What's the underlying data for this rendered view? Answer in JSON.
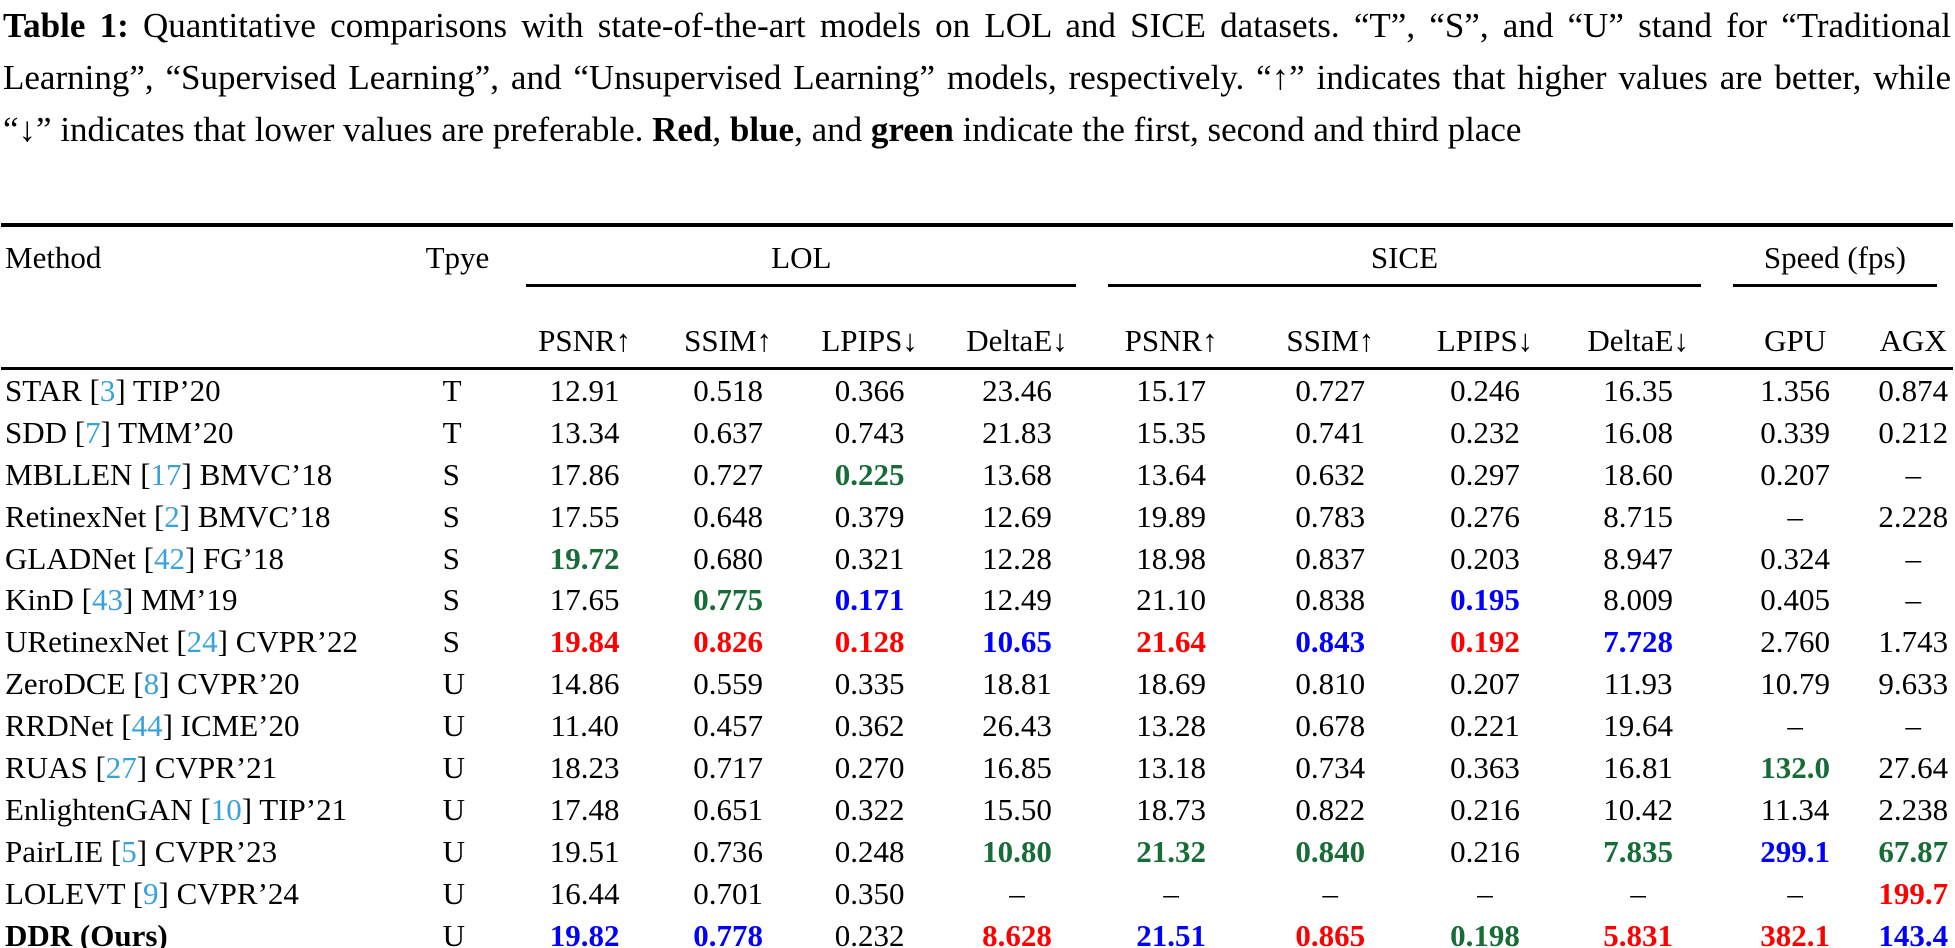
{
  "caption": {
    "segments": [
      {
        "t": "Table 1:",
        "b": true
      },
      {
        "t": " Quantitative comparisons with state-of-the-art models on LOL and SICE datasets. “T”, “S”, and “U” stand for “Traditional Learning”, “Supervised Learning”, and “Unsupervised Learning” models, respectively. “↑” indicates that higher values are better, while “↓” indicates that lower values are preferable. ",
        "b": false
      },
      {
        "t": "Red",
        "b": true
      },
      {
        "t": ", ",
        "b": false
      },
      {
        "t": "blue",
        "b": true
      },
      {
        "t": ", and ",
        "b": false
      },
      {
        "t": "green",
        "b": true
      },
      {
        "t": " indicate the first, second and third place",
        "b": false
      }
    ]
  },
  "colors": {
    "first": "#ff0000",
    "second": "#0000ff",
    "third": "#186c38",
    "cite": "#38a2dc"
  },
  "table": {
    "head": {
      "method": "Method",
      "type": "Tpye",
      "groups": [
        "LOL",
        "SICE",
        "Speed (fps)"
      ],
      "sub": [
        "PSNR↑",
        "SSIM↑",
        "LPIPS↓",
        "DeltaE↓",
        "PSNR↑",
        "SSIM↑",
        "LPIPS↓",
        "DeltaE↓",
        "GPU",
        "AGX"
      ]
    },
    "rows": [
      {
        "name": "STAR",
        "cite": "3",
        "venue": "TIP’20",
        "type": "T",
        "bold": false,
        "cells": [
          [
            "12.91",
            "k"
          ],
          [
            "0.518",
            "k"
          ],
          [
            "0.366",
            "k"
          ],
          [
            "23.46",
            "k"
          ],
          [
            "15.17",
            "k"
          ],
          [
            "0.727",
            "k"
          ],
          [
            "0.246",
            "k"
          ],
          [
            "16.35",
            "k"
          ],
          [
            "1.356",
            "k"
          ],
          [
            "0.874",
            "k"
          ]
        ]
      },
      {
        "name": "SDD",
        "cite": "7",
        "venue": "TMM’20",
        "type": "T",
        "bold": false,
        "cells": [
          [
            "13.34",
            "k"
          ],
          [
            "0.637",
            "k"
          ],
          [
            "0.743",
            "k"
          ],
          [
            "21.83",
            "k"
          ],
          [
            "15.35",
            "k"
          ],
          [
            "0.741",
            "k"
          ],
          [
            "0.232",
            "k"
          ],
          [
            "16.08",
            "k"
          ],
          [
            "0.339",
            "k"
          ],
          [
            "0.212",
            "k"
          ]
        ]
      },
      {
        "name": "MBLLEN",
        "cite": "17",
        "venue": "BMVC’18",
        "type": "S",
        "bold": false,
        "cells": [
          [
            "17.86",
            "k"
          ],
          [
            "0.727",
            "k"
          ],
          [
            "0.225",
            "g"
          ],
          [
            "13.68",
            "k"
          ],
          [
            "13.64",
            "k"
          ],
          [
            "0.632",
            "k"
          ],
          [
            "0.297",
            "k"
          ],
          [
            "18.60",
            "k"
          ],
          [
            "0.207",
            "k"
          ],
          [
            "–",
            "k"
          ]
        ]
      },
      {
        "name": "RetinexNet",
        "cite": "2",
        "venue": "BMVC’18",
        "type": "S",
        "bold": false,
        "cells": [
          [
            "17.55",
            "k"
          ],
          [
            "0.648",
            "k"
          ],
          [
            "0.379",
            "k"
          ],
          [
            "12.69",
            "k"
          ],
          [
            "19.89",
            "k"
          ],
          [
            "0.783",
            "k"
          ],
          [
            "0.276",
            "k"
          ],
          [
            "8.715",
            "k"
          ],
          [
            "–",
            "k"
          ],
          [
            "2.228",
            "k"
          ]
        ]
      },
      {
        "name": "GLADNet",
        "cite": "42",
        "venue": "FG’18",
        "type": "S",
        "bold": false,
        "cells": [
          [
            "19.72",
            "g"
          ],
          [
            "0.680",
            "k"
          ],
          [
            "0.321",
            "k"
          ],
          [
            "12.28",
            "k"
          ],
          [
            "18.98",
            "k"
          ],
          [
            "0.837",
            "k"
          ],
          [
            "0.203",
            "k"
          ],
          [
            "8.947",
            "k"
          ],
          [
            "0.324",
            "k"
          ],
          [
            "–",
            "k"
          ]
        ]
      },
      {
        "name": "KinD",
        "cite": "43",
        "venue": "MM’19",
        "type": "S",
        "bold": false,
        "cells": [
          [
            "17.65",
            "k"
          ],
          [
            "0.775",
            "g"
          ],
          [
            "0.171",
            "b"
          ],
          [
            "12.49",
            "k"
          ],
          [
            "21.10",
            "k"
          ],
          [
            "0.838",
            "k"
          ],
          [
            "0.195",
            "b"
          ],
          [
            "8.009",
            "k"
          ],
          [
            "0.405",
            "k"
          ],
          [
            "–",
            "k"
          ]
        ]
      },
      {
        "name": "URetinexNet",
        "cite": "24",
        "venue": "CVPR’22",
        "type": "S",
        "bold": false,
        "cells": [
          [
            "19.84",
            "r"
          ],
          [
            "0.826",
            "r"
          ],
          [
            "0.128",
            "r"
          ],
          [
            "10.65",
            "b"
          ],
          [
            "21.64",
            "r"
          ],
          [
            "0.843",
            "b"
          ],
          [
            "0.192",
            "r"
          ],
          [
            "7.728",
            "b"
          ],
          [
            "2.760",
            "k"
          ],
          [
            "1.743",
            "k"
          ]
        ]
      },
      {
        "name": "ZeroDCE",
        "cite": "8",
        "venue": "CVPR’20",
        "type": "U",
        "bold": false,
        "cells": [
          [
            "14.86",
            "k"
          ],
          [
            "0.559",
            "k"
          ],
          [
            "0.335",
            "k"
          ],
          [
            "18.81",
            "k"
          ],
          [
            "18.69",
            "k"
          ],
          [
            "0.810",
            "k"
          ],
          [
            "0.207",
            "k"
          ],
          [
            "11.93",
            "k"
          ],
          [
            "10.79",
            "k"
          ],
          [
            "9.633",
            "k"
          ]
        ]
      },
      {
        "name": "RRDNet",
        "cite": "44",
        "venue": "ICME’20",
        "type": "U",
        "bold": false,
        "cells": [
          [
            "11.40",
            "k"
          ],
          [
            "0.457",
            "k"
          ],
          [
            "0.362",
            "k"
          ],
          [
            "26.43",
            "k"
          ],
          [
            "13.28",
            "k"
          ],
          [
            "0.678",
            "k"
          ],
          [
            "0.221",
            "k"
          ],
          [
            "19.64",
            "k"
          ],
          [
            "–",
            "k"
          ],
          [
            "–",
            "k"
          ]
        ]
      },
      {
        "name": "RUAS",
        "cite": "27",
        "venue": "CVPR’21",
        "type": "U",
        "bold": false,
        "cells": [
          [
            "18.23",
            "k"
          ],
          [
            "0.717",
            "k"
          ],
          [
            "0.270",
            "k"
          ],
          [
            "16.85",
            "k"
          ],
          [
            "13.18",
            "k"
          ],
          [
            "0.734",
            "k"
          ],
          [
            "0.363",
            "k"
          ],
          [
            "16.81",
            "k"
          ],
          [
            "132.0",
            "g"
          ],
          [
            "27.64",
            "k"
          ]
        ]
      },
      {
        "name": "EnlightenGAN",
        "cite": "10",
        "venue": "TIP’21",
        "type": "U",
        "bold": false,
        "cells": [
          [
            "17.48",
            "k"
          ],
          [
            "0.651",
            "k"
          ],
          [
            "0.322",
            "k"
          ],
          [
            "15.50",
            "k"
          ],
          [
            "18.73",
            "k"
          ],
          [
            "0.822",
            "k"
          ],
          [
            "0.216",
            "k"
          ],
          [
            "10.42",
            "k"
          ],
          [
            "11.34",
            "k"
          ],
          [
            "2.238",
            "k"
          ]
        ]
      },
      {
        "name": "PairLIE",
        "cite": "5",
        "venue": "CVPR’23",
        "type": "U",
        "bold": false,
        "cells": [
          [
            "19.51",
            "k"
          ],
          [
            "0.736",
            "k"
          ],
          [
            "0.248",
            "k"
          ],
          [
            "10.80",
            "g"
          ],
          [
            "21.32",
            "g"
          ],
          [
            "0.840",
            "g"
          ],
          [
            "0.216",
            "k"
          ],
          [
            "7.835",
            "g"
          ],
          [
            "299.1",
            "b"
          ],
          [
            "67.87",
            "g"
          ]
        ]
      },
      {
        "name": "LOLEVT",
        "cite": "9",
        "venue": "CVPR’24",
        "type": "U",
        "bold": false,
        "cells": [
          [
            "16.44",
            "k"
          ],
          [
            "0.701",
            "k"
          ],
          [
            "0.350",
            "k"
          ],
          [
            "–",
            "k"
          ],
          [
            "–",
            "k"
          ],
          [
            "–",
            "k"
          ],
          [
            "–",
            "k"
          ],
          [
            "–",
            "k"
          ],
          [
            "–",
            "k"
          ],
          [
            "199.7",
            "r"
          ]
        ]
      },
      {
        "name": "DDR (Ours)",
        "cite": null,
        "venue": "",
        "type": "U",
        "bold": true,
        "cells": [
          [
            "19.82",
            "b"
          ],
          [
            "0.778",
            "b"
          ],
          [
            "0.232",
            "k"
          ],
          [
            "8.628",
            "r"
          ],
          [
            "21.51",
            "b"
          ],
          [
            "0.865",
            "r"
          ],
          [
            "0.198",
            "g"
          ],
          [
            "5.831",
            "r"
          ],
          [
            "382.1",
            "r"
          ],
          [
            "143.4",
            "b"
          ]
        ]
      }
    ]
  }
}
